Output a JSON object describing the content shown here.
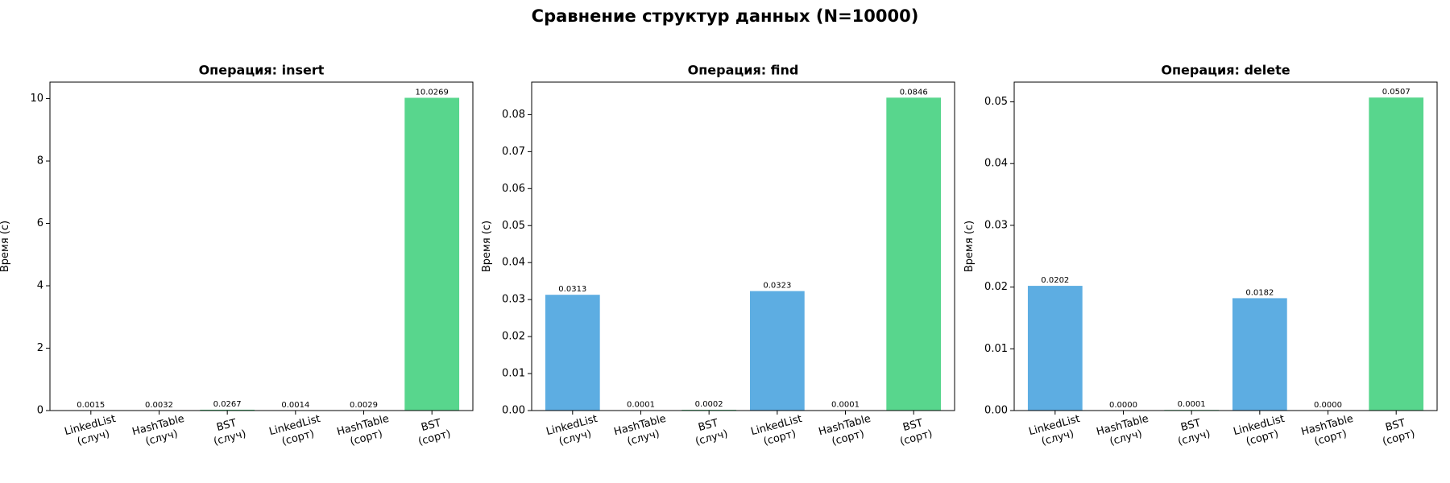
{
  "title": "Сравнение структур данных (N=10000)",
  "chart_data": [
    {
      "type": "bar",
      "title": "Операция: insert",
      "ylabel": "Время (с)",
      "categories": [
        "LinkedList\n(случ)",
        "HashTable\n(случ)",
        "BST\n(случ)",
        "LinkedList\n(сорт)",
        "HashTable\n(сорт)",
        "BST\n(сорт)"
      ],
      "values": [
        0.0015,
        0.0032,
        0.0267,
        0.0014,
        0.0029,
        10.0269
      ],
      "value_labels": [
        "0.0015",
        "0.0032",
        "0.0267",
        "0.0014",
        "0.0029",
        "10.0269"
      ],
      "colors": [
        "#5dade2",
        "#e67e22",
        "#58d68d",
        "#5dade2",
        "#e67e22",
        "#58d68d"
      ],
      "ylim": [
        0,
        10.53
      ],
      "yticks": [
        0,
        2,
        4,
        6,
        8,
        10
      ]
    },
    {
      "type": "bar",
      "title": "Операция: find",
      "ylabel": "Время (с)",
      "categories": [
        "LinkedList\n(случ)",
        "HashTable\n(случ)",
        "BST\n(случ)",
        "LinkedList\n(сорт)",
        "HashTable\n(сорт)",
        "BST\n(сорт)"
      ],
      "values": [
        0.0313,
        0.0001,
        0.0002,
        0.0323,
        0.0001,
        0.0846
      ],
      "value_labels": [
        "0.0313",
        "0.0001",
        "0.0002",
        "0.0323",
        "0.0001",
        "0.0846"
      ],
      "colors": [
        "#5dade2",
        "#e67e22",
        "#58d68d",
        "#5dade2",
        "#e67e22",
        "#58d68d"
      ],
      "ylim": [
        0,
        0.0888
      ],
      "yticks": [
        {
          "value": 0,
          "label": "0.00"
        },
        {
          "value": 0.01,
          "label": "0.01"
        },
        {
          "value": 0.02,
          "label": "0.02"
        },
        {
          "value": 0.03,
          "label": "0.03"
        },
        {
          "value": 0.04,
          "label": "0.04"
        },
        {
          "value": 0.05,
          "label": "0.05"
        },
        {
          "value": 0.06,
          "label": "0.06"
        },
        {
          "value": 0.07,
          "label": "0.07"
        },
        {
          "value": 0.08,
          "label": "0.08"
        }
      ]
    },
    {
      "type": "bar",
      "title": "Операция: delete",
      "ylabel": "Время (с)",
      "categories": [
        "LinkedList\n(случ)",
        "HashTable\n(случ)",
        "BST\n(случ)",
        "LinkedList\n(сорт)",
        "HashTable\n(сорт)",
        "BST\n(сорт)"
      ],
      "values": [
        0.0202,
        2e-05,
        0.0001,
        0.0182,
        2e-05,
        0.0507
      ],
      "value_labels": [
        "0.0202",
        "0.0000",
        "0.0001",
        "0.0182",
        "0.0000",
        "0.0507"
      ],
      "colors": [
        "#5dade2",
        "#e67e22",
        "#58d68d",
        "#5dade2",
        "#e67e22",
        "#58d68d"
      ],
      "ylim": [
        0,
        0.0532
      ],
      "yticks": [
        {
          "value": 0,
          "label": "0.00"
        },
        {
          "value": 0.01,
          "label": "0.01"
        },
        {
          "value": 0.02,
          "label": "0.02"
        },
        {
          "value": 0.03,
          "label": "0.03"
        },
        {
          "value": 0.04,
          "label": "0.04"
        },
        {
          "value": 0.05,
          "label": "0.05"
        }
      ]
    }
  ]
}
